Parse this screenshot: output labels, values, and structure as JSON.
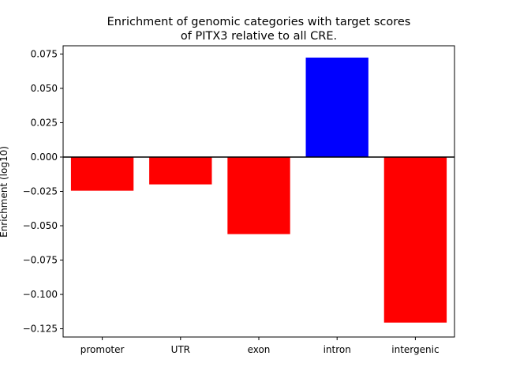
{
  "chart_data": {
    "type": "bar",
    "title_line1": "Enrichment of genomic categories with target scores",
    "title_line2": "of PITX3 relative to all CRE.",
    "xlabel": "",
    "ylabel": "Enrichment (log10)",
    "categories": [
      "promoter",
      "UTR",
      "exon",
      "intron",
      "intergenic"
    ],
    "values": [
      -0.0245,
      -0.0199,
      -0.0561,
      0.0724,
      -0.1205
    ],
    "ylim": [
      -0.131,
      0.081
    ],
    "yticks": [
      0.075,
      0.05,
      0.025,
      0.0,
      -0.025,
      -0.05,
      -0.075,
      -0.1,
      -0.125
    ],
    "ytick_labels": [
      "0.075",
      "0.050",
      "0.025",
      "0.000",
      "−0.025",
      "−0.050",
      "−0.075",
      "−0.100",
      "−0.125"
    ],
    "grid": false,
    "zero_line": true,
    "colors": {
      "positive": "#0000ff",
      "negative": "#ff0000",
      "axis": "#000000",
      "background": "#ffffff"
    }
  }
}
